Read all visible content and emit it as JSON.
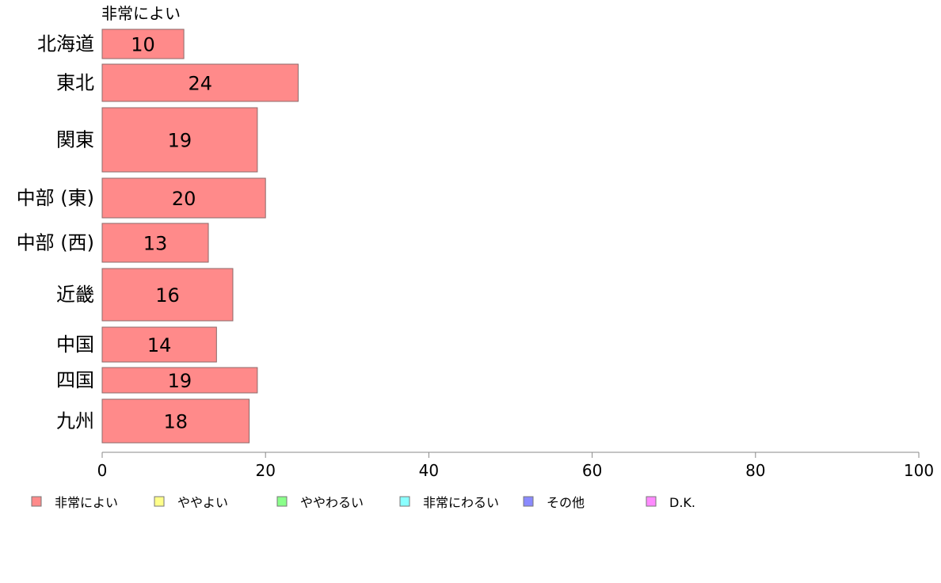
{
  "chart_data": {
    "type": "bar",
    "orientation": "horizontal",
    "series_title": "非常によい",
    "categories": [
      "北海道",
      "東北",
      "関東",
      "中部 (東)",
      "中部 (西)",
      "近畿",
      "中国",
      "四国",
      "九州"
    ],
    "series": [
      {
        "name": "非常によい",
        "values": [
          10,
          24,
          19,
          20,
          13,
          16,
          14,
          19,
          18
        ],
        "color": "#ff8a8a"
      }
    ],
    "xlim": [
      0,
      100
    ],
    "xticks": [
      0,
      20,
      40,
      60,
      80,
      100
    ],
    "grid": false,
    "legend_position": "bottom",
    "legend": [
      {
        "label": "非常によい",
        "color": "#ff8a8a"
      },
      {
        "label": "ややよい",
        "color": "#ffff8a"
      },
      {
        "label": "ややわるい",
        "color": "#8aff8a"
      },
      {
        "label": "非常にわるい",
        "color": "#8affff"
      },
      {
        "label": "その他",
        "color": "#8a8aff"
      },
      {
        "label": "D.K.",
        "color": "#ff8aff"
      }
    ]
  }
}
